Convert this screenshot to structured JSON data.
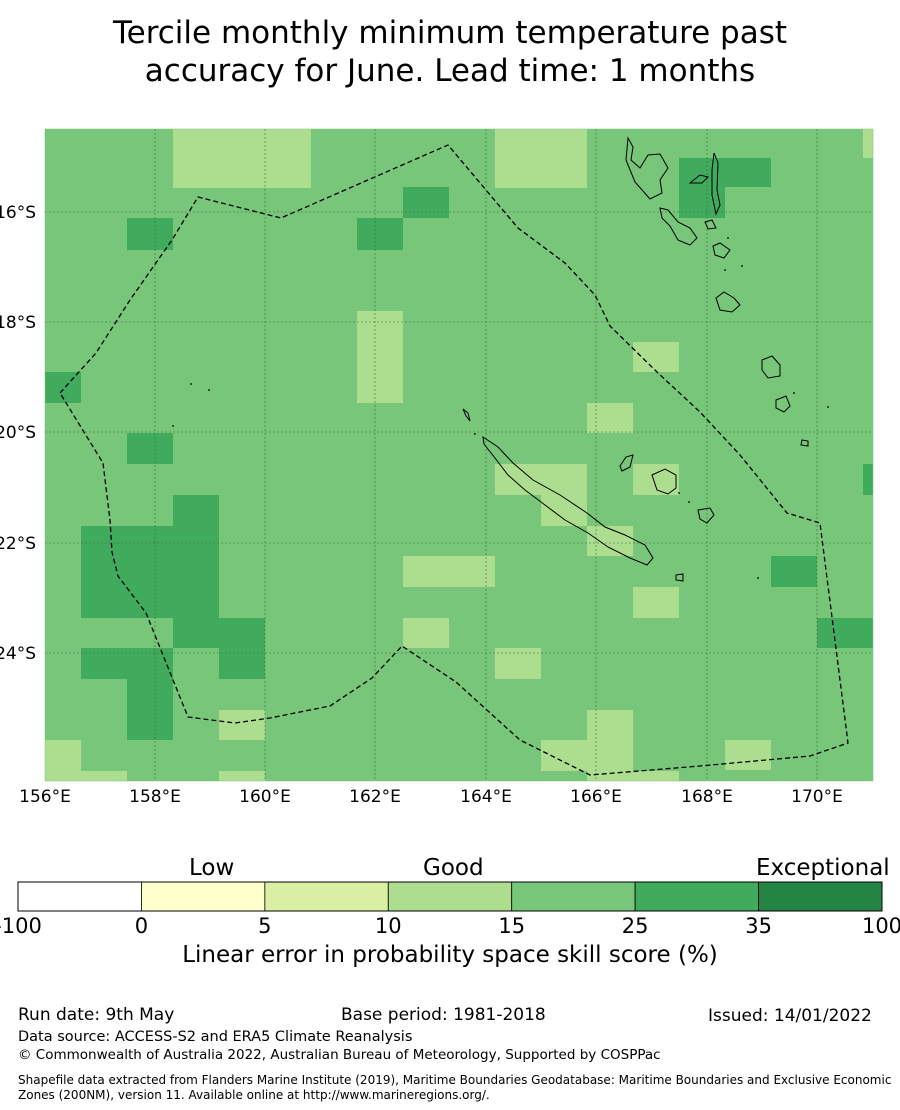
{
  "title": {
    "line1": "Tercile monthly minimum temperature past",
    "line2": "accuracy for June. Lead time: 1 months"
  },
  "map": {
    "lon_labels": [
      "156°E",
      "158°E",
      "160°E",
      "162°E",
      "164°E",
      "166°E",
      "168°E",
      "170°E"
    ],
    "lat_labels": [
      "16°S",
      "18°S",
      "20°S",
      "22°S",
      "24°S"
    ],
    "background_color": "#78c679",
    "grid_color": "#3a6e3a",
    "eez_line": "dashed black",
    "land_outline": "black"
  },
  "legend": {
    "categories": [
      "Low",
      "Good",
      "Exceptional"
    ],
    "boundaries": [
      "-100",
      "0",
      "5",
      "10",
      "15",
      "25",
      "35",
      "100"
    ],
    "colors": [
      "#ffffff",
      "#ffffcc",
      "#d9f0a3",
      "#addd8e",
      "#78c679",
      "#41ab5d",
      "#238443"
    ],
    "title": "Linear error in probability space skill score (%)"
  },
  "footer": {
    "run_date": "Run date: 9th May",
    "base_period": "Base period: 1981-2018",
    "issued": "Issued: 14/01/2022",
    "data_source": "Data source: ACCESS-S2 and ERA5 Climate Reanalysis",
    "copyright": "© Commonwealth of Australia 2022, Australian Bureau of Meteorology, Supported by COSPPac",
    "shapefile": "Shapefile data extracted from Flanders Marine Institute (2019), Maritime Boundaries Geodatabase: Maritime Boundaries and Exclusive Economic Zones (200NM), version 11. Available online at http://www.marineregions.org/."
  }
}
